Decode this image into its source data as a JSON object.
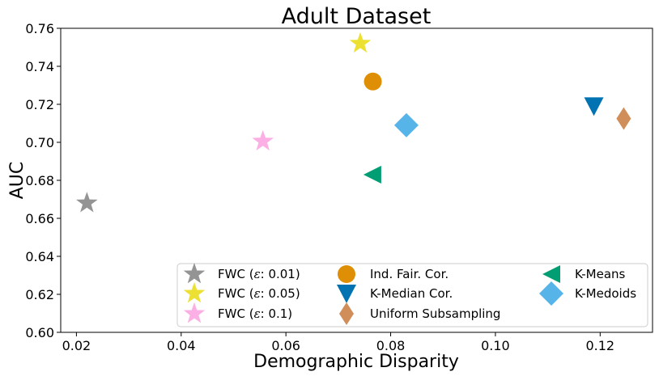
{
  "chart_data": {
    "type": "scatter",
    "title": "Adult Dataset",
    "xlabel": "Demographic Disparity",
    "ylabel": "AUC",
    "xlim": [
      0.017,
      0.13
    ],
    "ylim": [
      0.6,
      0.76
    ],
    "xticks": [
      0.02,
      0.04,
      0.06,
      0.08,
      0.1,
      0.12
    ],
    "xtick_labels": [
      "0.02",
      "0.04",
      "0.06",
      "0.08",
      "0.10",
      "0.12"
    ],
    "yticks": [
      0.6,
      0.62,
      0.64,
      0.66,
      0.68,
      0.7,
      0.72,
      0.74,
      0.76
    ],
    "ytick_labels": [
      "0.60",
      "0.62",
      "0.64",
      "0.66",
      "0.68",
      "0.70",
      "0.72",
      "0.74",
      "0.76"
    ],
    "grid": false,
    "legend_position": "lower-right",
    "series": [
      {
        "name": "FWC (ε: 0.01)",
        "legend_prefix": "FWC (",
        "legend_eps": "ε",
        "legend_suffix": ": 0.01)",
        "marker": "star",
        "color": "#949494",
        "x": 0.022,
        "y": 0.668
      },
      {
        "name": "FWC (ε: 0.05)",
        "legend_prefix": "FWC (",
        "legend_eps": "ε",
        "legend_suffix": ": 0.05)",
        "marker": "star",
        "color": "#ece133",
        "x": 0.0742,
        "y": 0.752
      },
      {
        "name": "FWC (ε: 0.1)",
        "legend_prefix": "FWC (",
        "legend_eps": "ε",
        "legend_suffix": ": 0.1)",
        "marker": "star",
        "color": "#fbafe4",
        "x": 0.0556,
        "y": 0.7005
      },
      {
        "name": "Ind. Fair. Cor.",
        "marker": "circle",
        "color": "#de8f05",
        "x": 0.0766,
        "y": 0.732
      },
      {
        "name": "K-Median Cor.",
        "marker": "triangle_down",
        "color": "#0173b2",
        "x": 0.1188,
        "y": 0.719
      },
      {
        "name": "Uniform Subsampling",
        "marker": "diamond_thin",
        "color": "#d08f5a",
        "x": 0.1245,
        "y": 0.7125
      },
      {
        "name": "K-Means",
        "marker": "triangle_left",
        "color": "#029e73",
        "x": 0.0765,
        "y": 0.683
      },
      {
        "name": "K-Medoids",
        "marker": "diamond",
        "color": "#56b4e9",
        "x": 0.083,
        "y": 0.709
      }
    ]
  }
}
